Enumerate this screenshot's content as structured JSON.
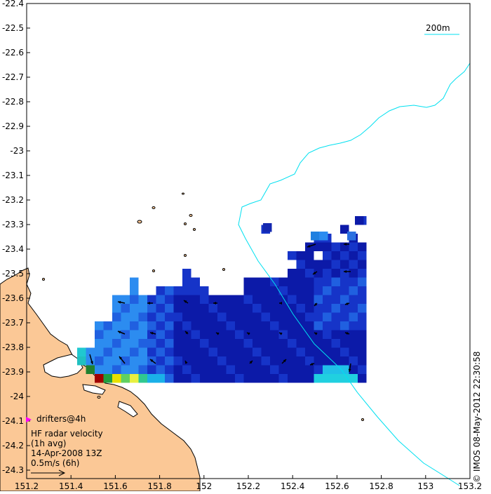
{
  "map": {
    "x_ticks": [
      "151.2",
      "151.4",
      "151.6",
      "151.8",
      "152",
      "152.2",
      "152.4",
      "152.6",
      "152.8",
      "153",
      "153.2"
    ],
    "y_ticks": [
      "-22.4",
      "-22.5",
      "-22.6",
      "-22.7",
      "-22.8",
      "-22.9",
      "-23",
      "-23.1",
      "-23.2",
      "-23.3",
      "-23.4",
      "-23.5",
      "-23.6",
      "-23.7",
      "-23.8",
      "-23.9",
      "-24",
      "-24.1",
      "-24.2",
      "-24.3"
    ],
    "lon_range": [
      151.2,
      153.2
    ],
    "lat_range": [
      -24.36,
      -22.4
    ],
    "scale_bar_label": "200m",
    "legend": {
      "drifters_label": "drifters@4h",
      "title_line1": "HF radar velocity",
      "title_line2": "(1h avg)",
      "date": "14-Apr-2008 13Z",
      "scale_label": "0.5m/s (6h)"
    },
    "credit": "© IMOS 08-May-2012 22:30:58",
    "colors": {
      "land": "#FBC896",
      "isobath": "#00E0F0",
      "drifter_marker": "#FF00FF",
      "background": "#FFFFFF"
    }
  }
}
